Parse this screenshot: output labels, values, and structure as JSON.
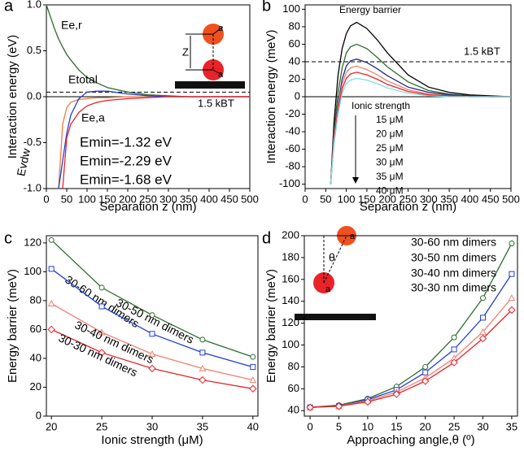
{
  "chart_data": [
    {
      "type": "line",
      "label": "a",
      "xlabel": "Separation z (nm)",
      "ylabel": "Interaction energy (eV)",
      "x": [
        0,
        20,
        30,
        40,
        50,
        60,
        80,
        100,
        125,
        150,
        200,
        250,
        300,
        350,
        400,
        450,
        500
      ],
      "series": [
        {
          "name": "Ee,r",
          "color": "#2e6b2e",
          "values": [
            1.0,
            0.74,
            0.63,
            0.54,
            0.46,
            0.4,
            0.29,
            0.21,
            0.15,
            0.1,
            0.05,
            0.02,
            0.01,
            0.0,
            0.0,
            0.0,
            0.0
          ]
        },
        {
          "name": "Evdw",
          "color": "#f07a3a",
          "values": [
            null,
            null,
            -1.0,
            -0.3,
            -0.12,
            -0.06,
            -0.03,
            -0.02,
            -0.01,
            -0.01,
            0.0,
            0.0,
            0.0,
            0.0,
            0.0,
            0.0,
            0.0
          ]
        },
        {
          "name": "Etotal",
          "color": "#1f3fd8",
          "values": [
            null,
            null,
            -1.0,
            -0.7,
            -0.4,
            -0.2,
            -0.02,
            0.05,
            0.06,
            0.06,
            0.03,
            0.01,
            0.0,
            0.0,
            0.0,
            0.0,
            0.0
          ]
        },
        {
          "name": "Ee,a",
          "color": "#e8232a",
          "values": [
            null,
            null,
            null,
            -1.0,
            -0.45,
            -0.3,
            -0.17,
            -0.1,
            -0.06,
            -0.04,
            -0.02,
            -0.01,
            0.0,
            0.0,
            0.0,
            0.0,
            0.0
          ]
        }
      ],
      "xlim": [
        0,
        500
      ],
      "ylim": [
        -1.0,
        1.0
      ],
      "xticks": [
        0,
        50,
        100,
        150,
        200,
        250,
        300,
        350,
        400,
        450,
        500
      ],
      "yticks": [
        {
          "value": -1,
          "label": "-1.0"
        },
        -0.5,
        {
          "value": 0,
          "label": "0.0"
        },
        0.5,
        {
          "value": 1,
          "label": "1.0"
        }
      ],
      "threshold": 0.05,
      "threshold_label": "1.5 kBT",
      "zero_line": true,
      "annotations": [
        {
          "text": "Emin=-1.32 eV",
          "color": "#f07a3a"
        },
        {
          "text": "Emin=-2.29 eV",
          "color": "#1f3fd8"
        },
        {
          "text": "Emin=-1.68 eV",
          "color": "#e8232a"
        }
      ],
      "inset_labels": [
        "Z",
        "a",
        "a"
      ]
    },
    {
      "type": "line",
      "label": "b",
      "xlabel": "Separation z (nm)",
      "ylabel": "Interaction energy (meV)",
      "x": [
        62,
        70,
        80,
        90,
        100,
        110,
        125,
        150,
        175,
        200,
        250,
        300,
        350,
        400,
        450,
        500
      ],
      "series": [
        {
          "name": "15 μM",
          "color": "#000000",
          "values": [
            -100,
            -30,
            25,
            55,
            72,
            81,
            85,
            78,
            65,
            50,
            25,
            11,
            5,
            2,
            1,
            0
          ]
        },
        {
          "name": "20 μM",
          "color": "#2e6b2e",
          "values": [
            -100,
            -40,
            5,
            33,
            50,
            57,
            60,
            55,
            45,
            34,
            17,
            7,
            3,
            1,
            0,
            0
          ]
        },
        {
          "name": "25 μM",
          "color": "#1f2a8a",
          "values": [
            -100,
            -45,
            -8,
            20,
            35,
            41,
            43,
            39,
            32,
            24,
            11,
            5,
            2,
            1,
            0,
            0
          ]
        },
        {
          "name": "30 μM",
          "color": "#f08070",
          "values": [
            -100,
            -48,
            -12,
            14,
            28,
            33,
            35,
            31,
            25,
            18,
            8,
            3,
            1,
            0,
            0,
            0
          ]
        },
        {
          "name": "35 μM",
          "color": "#e8232a",
          "values": [
            -100,
            -52,
            -16,
            9,
            21,
            26,
            28,
            25,
            20,
            14,
            6,
            2,
            1,
            0,
            0,
            0
          ]
        },
        {
          "name": "40 μM",
          "color": "#7fe0e0",
          "values": [
            -100,
            -55,
            -20,
            4,
            15,
            19,
            21,
            19,
            15,
            10,
            4,
            1,
            0,
            0,
            0,
            0
          ]
        }
      ],
      "xlim": [
        0,
        500
      ],
      "ylim": [
        -105,
        105
      ],
      "xticks": [
        0,
        50,
        100,
        150,
        200,
        250,
        300,
        350,
        400,
        450,
        500
      ],
      "yticks": [
        -100,
        -80,
        -60,
        -40,
        -20,
        0,
        20,
        40,
        60,
        80,
        100
      ],
      "threshold": 40,
      "threshold_label": "1.5 kBT",
      "zero_line": true,
      "annotations": [
        {
          "text": "Energy barrier",
          "color": "#000000"
        }
      ],
      "legend_title": "Ionic strength"
    },
    {
      "type": "line",
      "label": "c",
      "xlabel": "Ionic strength (μM)",
      "ylabel": "Energy barrier (meV)",
      "x": [
        20,
        25,
        30,
        35,
        40
      ],
      "series": [
        {
          "name": "30-60 nm dimers",
          "color": "#2e6b2e",
          "marker": "circle",
          "values": [
            122,
            89,
            70,
            53,
            41
          ]
        },
        {
          "name": "30-50 nm dimers",
          "color": "#1f3fd8",
          "marker": "square",
          "values": [
            102,
            76,
            57,
            44,
            34
          ]
        },
        {
          "name": "30-40 nm dimers",
          "color": "#f08070",
          "marker": "triangle",
          "values": [
            78,
            58,
            43,
            33,
            25
          ]
        },
        {
          "name": "30-30 nm dimers",
          "color": "#e8232a",
          "marker": "diamond",
          "values": [
            60,
            44,
            33,
            25,
            19
          ]
        }
      ],
      "xlim": [
        19.5,
        40.5
      ],
      "ylim": [
        0,
        125
      ],
      "xticks": [
        20,
        25,
        30,
        35,
        40
      ],
      "yticks": [
        0,
        20,
        40,
        60,
        80,
        100,
        120
      ]
    },
    {
      "type": "line",
      "label": "d",
      "xlabel": "Approaching angle,θ (º)",
      "ylabel": "Energy barrier (meV)",
      "x": [
        0,
        5,
        10,
        15,
        20,
        25,
        30,
        35
      ],
      "series": [
        {
          "name": "30-60 nm dimers",
          "color": "#2e6b2e",
          "marker": "circle",
          "values": [
            43,
            45,
            51,
            62,
            80,
            107,
            143,
            193
          ]
        },
        {
          "name": "30-50 nm dimers",
          "color": "#1f3fd8",
          "marker": "square",
          "values": [
            43,
            44,
            50,
            59,
            75,
            96,
            125,
            165
          ]
        },
        {
          "name": "30-40 nm dimers",
          "color": "#f08070",
          "marker": "triangle",
          "values": [
            43,
            44,
            49,
            57,
            70,
            88,
            112,
            143
          ]
        },
        {
          "name": "30-30 nm dimers",
          "color": "#e8232a",
          "marker": "diamond",
          "values": [
            43,
            44,
            48,
            55,
            67,
            84,
            106,
            132
          ]
        }
      ],
      "xlim": [
        -1,
        36
      ],
      "ylim": [
        35,
        200
      ],
      "xticks": [
        0,
        5,
        10,
        15,
        20,
        25,
        30,
        35
      ],
      "yticks": [
        40,
        60,
        80,
        100,
        120,
        140,
        160,
        180,
        200
      ],
      "inset_labels": [
        "θ",
        "a",
        "a"
      ]
    }
  ]
}
